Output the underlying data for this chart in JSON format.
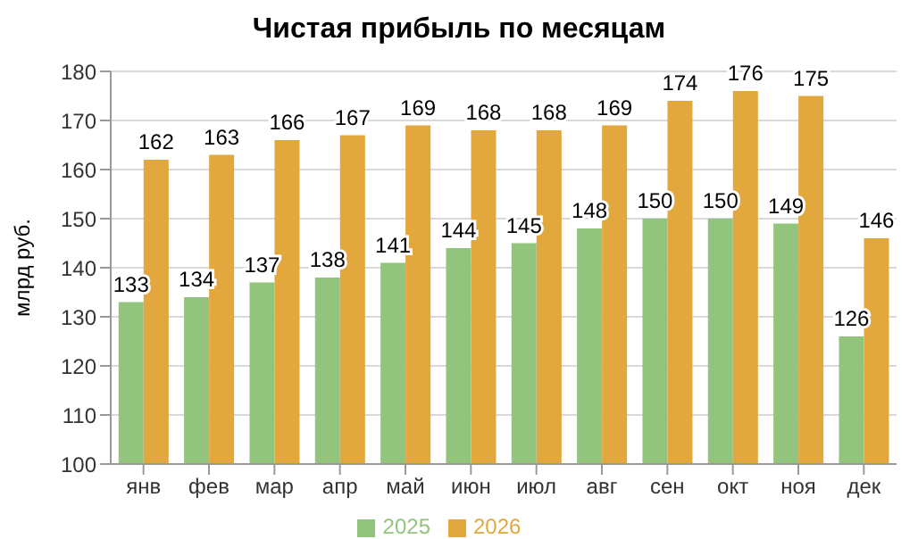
{
  "chart_data": {
    "type": "bar",
    "title": "Чистая прибыль по месяцам",
    "ylabel": "млрд руб.",
    "categories": [
      "янв",
      "фев",
      "мар",
      "апр",
      "май",
      "июн",
      "июл",
      "авг",
      "сен",
      "окт",
      "ноя",
      "дек"
    ],
    "series": [
      {
        "name": "2025",
        "color": "#93c47d",
        "values": [
          133,
          134,
          137,
          138,
          141,
          144,
          145,
          148,
          150,
          150,
          149,
          126
        ]
      },
      {
        "name": "2026",
        "color": "#e2a83e",
        "values": [
          162,
          163,
          166,
          167,
          169,
          168,
          168,
          169,
          174,
          176,
          175,
          146
        ]
      }
    ],
    "ylim": [
      100,
      180
    ],
    "yticks": [
      100,
      110,
      120,
      130,
      140,
      150,
      160,
      170,
      180
    ],
    "grid": "y",
    "legend": "bottom",
    "data_labels": true
  }
}
